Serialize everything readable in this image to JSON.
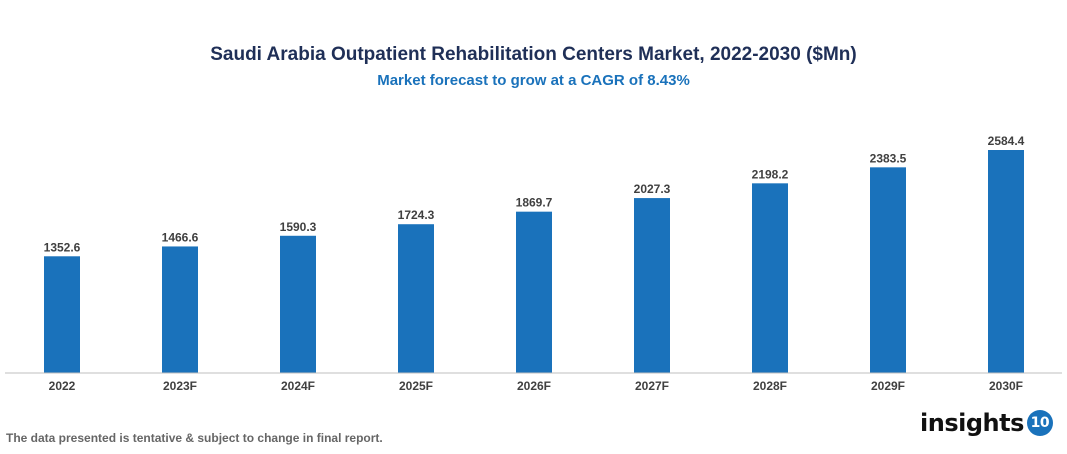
{
  "chart_data": {
    "type": "bar",
    "title": "Saudi Arabia Outpatient Rehabilitation Centers Market, 2022-2030 ($Mn)",
    "subtitle": "Market forecast to grow at a CAGR of 8.43%",
    "categories": [
      "2022",
      "2023F",
      "2024F",
      "2025F",
      "2026F",
      "2027F",
      "2028F",
      "2029F",
      "2030F"
    ],
    "values": [
      1352.6,
      1466.6,
      1590.3,
      1724.3,
      1869.7,
      2027.3,
      2198.2,
      2383.5,
      2584.4
    ],
    "value_labels": [
      "1352.6",
      "1466.6",
      "1590.3",
      "1724.3",
      "1869.7",
      "2027.3",
      "2198.2",
      "2383.5",
      "2584.4"
    ],
    "xlabel": "",
    "ylabel": "",
    "ylim": [
      0,
      2584.4
    ],
    "grid": false,
    "bar_color": "#1a72bb"
  },
  "footer": {
    "disclaimer": "The data presented is tentative & subject to change in final report."
  },
  "logo": {
    "text": "insights",
    "badge": "10"
  }
}
